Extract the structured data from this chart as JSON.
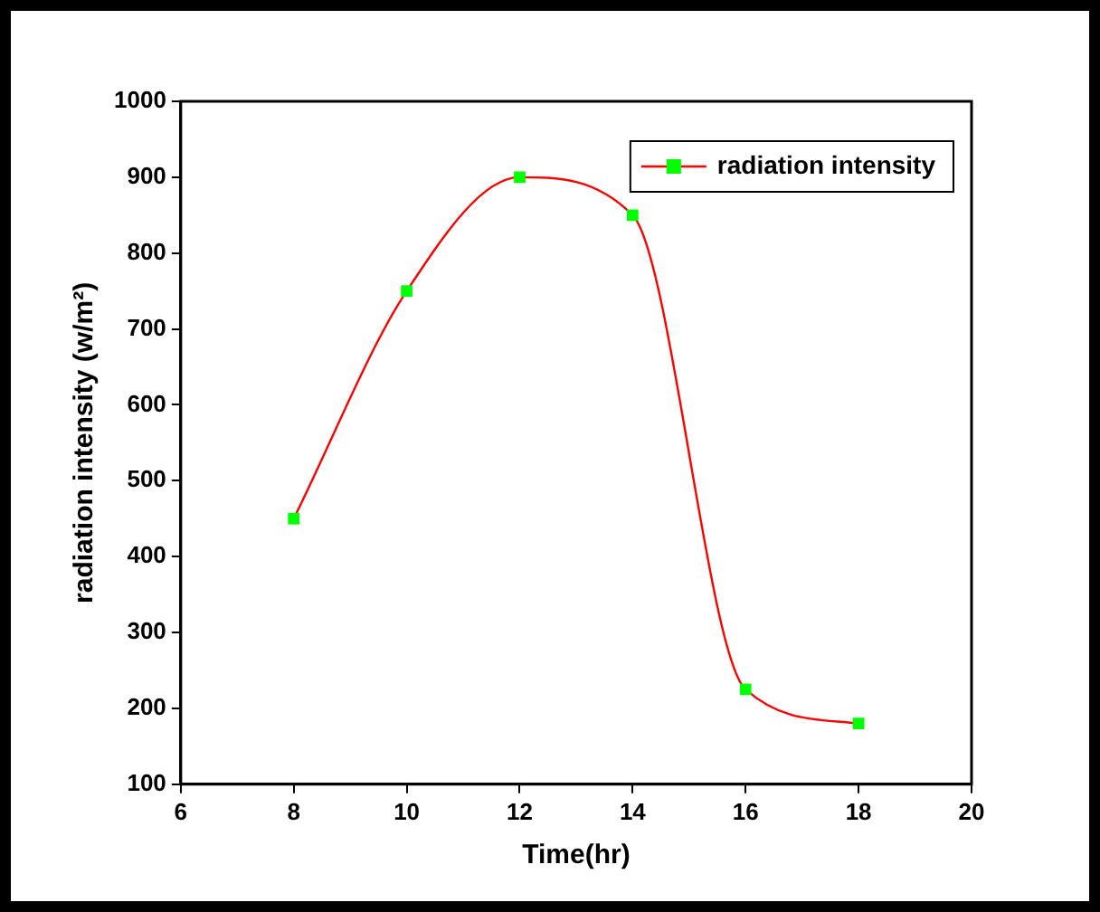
{
  "chart_data": {
    "type": "line",
    "xlabel": "Time(hr)",
    "ylabel": "radiation intensity (w/m²)",
    "x": [
      8,
      10,
      12,
      14,
      16,
      18
    ],
    "series": [
      {
        "name": "radiation intensity",
        "color": "#ff0000",
        "colors": [
          "#00ff00",
          "#00ff00",
          "#00ff00",
          "#00ff00",
          "#00ff00",
          "#00ff00"
        ],
        "values": [
          450,
          750,
          900,
          850,
          225,
          180
        ]
      }
    ],
    "xlim": [
      6,
      20
    ],
    "xticks": [
      6,
      8,
      10,
      12,
      14,
      16,
      18,
      20
    ],
    "ylim": [
      100,
      1000
    ],
    "yticks": [
      100,
      200,
      300,
      400,
      500,
      600,
      700,
      800,
      900,
      1000
    ],
    "grid": false,
    "legend": "top right",
    "marker": "square",
    "line_style": "solid"
  }
}
